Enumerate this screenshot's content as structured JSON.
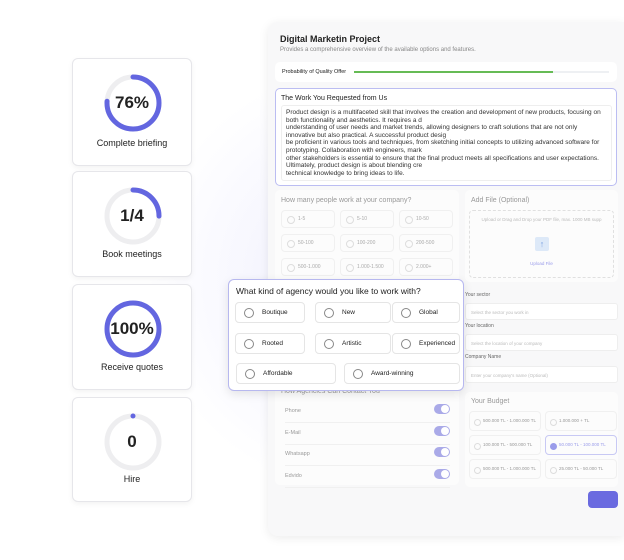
{
  "stats": [
    {
      "value": "76%",
      "label": "Complete briefing",
      "fraction": 0.76
    },
    {
      "value": "1/4",
      "label": "Book meetings",
      "fraction": 0.25
    },
    {
      "value": "100%",
      "label": "Receive quotes",
      "fraction": 1.0
    },
    {
      "value": "0",
      "label": "Hire",
      "fraction": 0
    }
  ],
  "accent": "#6366e0",
  "project": {
    "title": "Digital Marketin Project",
    "subtitle": "Provides a comprehensive overview of the available options and features.",
    "progress_label": "Probability of Quality Offer",
    "progress": 0.78
  },
  "work": {
    "title": "The Work You Requested from Us",
    "lines": [
      "Product design is a multifaceted skill that involves the creation and development of new products, focusing on both functionality and aesthetics. It requires a d",
      "understanding of user needs and market trends, allowing designers to craft solutions that are not only innovative but also practical. A successful product desig",
      "be proficient in various tools and techniques, from sketching initial concepts to utilizing advanced software for prototyping. Collaboration with engineers, mark",
      "other stakeholders is essential to ensure that the final product meets all specifications and user expectations. Ultimately, product design is about blending cre",
      "technical knowledge to bring ideas to life."
    ]
  },
  "people": {
    "title": "How many people work at your company?",
    "options": [
      "1-5",
      "5-10",
      "10-50",
      "50-100",
      "100-200",
      "200-500",
      "500-1.000",
      "1.000-1.500",
      "2.000+"
    ]
  },
  "file": {
    "title": "Add File (Optional)",
    "hint": "Upload or Drag and Drop your PDF file, max. 1000 MB supp",
    "upload": "Upload File"
  },
  "agency": {
    "title": "What kind of agency would you like to work with?",
    "options": [
      "Boutique",
      "New",
      "Global",
      "Rooted",
      "Artistic",
      "Experienced",
      "Affordable",
      "Award-winning"
    ]
  },
  "form": {
    "sector_label": "Your sector",
    "sector_placeholder": "Select the sector you work in",
    "location_label": "Your location",
    "location_placeholder": "Select the location of your company",
    "company_label": "Company Name",
    "company_placeholder": "Enter your company's name (Optional)"
  },
  "contact": {
    "title": "How Agencies Can Contact You",
    "items": [
      {
        "label": "Phone",
        "on": true
      },
      {
        "label": "E-Mail",
        "on": true
      },
      {
        "label": "Whatsapp",
        "on": true
      },
      {
        "label": "Edvido",
        "on": true
      }
    ]
  },
  "budget": {
    "title": "Your Budget",
    "options": [
      "500.000 TL - 1.000.000 TL",
      "1.000.000 + TL",
      "100.000 TL - 500.000 TL",
      "50.000 TL - 100.000 TL",
      "500.000 TL - 1.000.000 TL",
      "25.000 TL - 50.000 TL"
    ],
    "selected": "50.000 TL - 100.000 TL"
  }
}
